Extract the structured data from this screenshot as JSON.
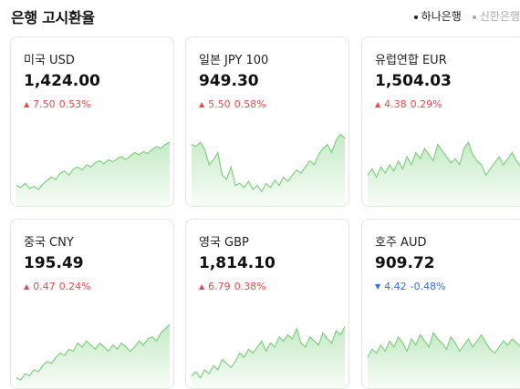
{
  "header": {
    "title": "은행 고시환율",
    "banks": [
      {
        "label": "하나은행",
        "active": true
      },
      {
        "label": "신한은행",
        "active": false
      }
    ]
  },
  "cards": [
    {
      "name": "미국 USD",
      "price": "1,424.00",
      "change": "7.50",
      "pct": "0.53%",
      "direction": "up",
      "chart_data": {
        "type": "area",
        "color": "#7fd17f",
        "values": [
          20,
          18,
          22,
          17,
          19,
          16,
          21,
          25,
          28,
          26,
          32,
          34,
          30,
          36,
          38,
          35,
          40,
          38,
          42,
          44,
          41,
          45,
          43,
          46,
          48,
          45,
          49,
          52,
          50,
          53,
          51,
          55,
          58,
          56,
          60,
          62
        ]
      }
    },
    {
      "name": "일본 JPY 100",
      "price": "949.30",
      "change": "5.50",
      "pct": "0.58%",
      "direction": "up",
      "chart_data": {
        "type": "area",
        "color": "#7fd17f",
        "values": [
          60,
          58,
          62,
          55,
          40,
          45,
          52,
          30,
          26,
          38,
          20,
          22,
          18,
          24,
          16,
          20,
          14,
          22,
          18,
          25,
          20,
          28,
          24,
          30,
          35,
          32,
          38,
          44,
          40,
          50,
          56,
          60,
          52,
          64,
          70,
          66
        ]
      }
    },
    {
      "name": "유럽연합 EUR",
      "price": "1,504.03",
      "change": "4.38",
      "pct": "0.29%",
      "direction": "up",
      "chart_data": {
        "type": "area",
        "color": "#7fd17f",
        "values": [
          30,
          36,
          28,
          38,
          32,
          40,
          34,
          44,
          36,
          48,
          40,
          52,
          46,
          56,
          50,
          44,
          60,
          54,
          48,
          42,
          46,
          40,
          56,
          62,
          50,
          44,
          40,
          30,
          36,
          42,
          48,
          40,
          46,
          52,
          44,
          38
        ]
      }
    },
    {
      "name": "중국 CNY",
      "price": "195.49",
      "change": "0.47",
      "pct": "0.24%",
      "direction": "up",
      "chart_data": {
        "type": "area",
        "color": "#7fd17f",
        "values": [
          10,
          8,
          14,
          12,
          18,
          16,
          22,
          26,
          24,
          30,
          34,
          32,
          38,
          36,
          44,
          40,
          46,
          42,
          38,
          44,
          40,
          36,
          42,
          38,
          44,
          40,
          36,
          40,
          46,
          42,
          48,
          50,
          46,
          54,
          58,
          62
        ]
      }
    },
    {
      "name": "영국 GBP",
      "price": "1,814.10",
      "change": "6.79",
      "pct": "0.38%",
      "direction": "up",
      "chart_data": {
        "type": "area",
        "color": "#7fd17f",
        "values": [
          12,
          16,
          10,
          18,
          14,
          22,
          18,
          28,
          24,
          20,
          26,
          34,
          30,
          38,
          34,
          40,
          46,
          36,
          44,
          40,
          50,
          46,
          52,
          48,
          58,
          44,
          40,
          50,
          46,
          42,
          54,
          48,
          44,
          56,
          52,
          60
        ]
      }
    },
    {
      "name": "호주 AUD",
      "price": "909.72",
      "change": "4.42",
      "pct": "-0.48%",
      "direction": "down",
      "chart_data": {
        "type": "area",
        "color": "#7fd17f",
        "values": [
          30,
          38,
          34,
          42,
          36,
          46,
          40,
          50,
          44,
          36,
          48,
          42,
          52,
          46,
          40,
          54,
          48,
          44,
          38,
          50,
          44,
          36,
          42,
          48,
          40,
          46,
          52,
          44,
          38,
          34,
          40,
          46,
          42,
          48,
          44,
          40
        ]
      }
    }
  ]
}
